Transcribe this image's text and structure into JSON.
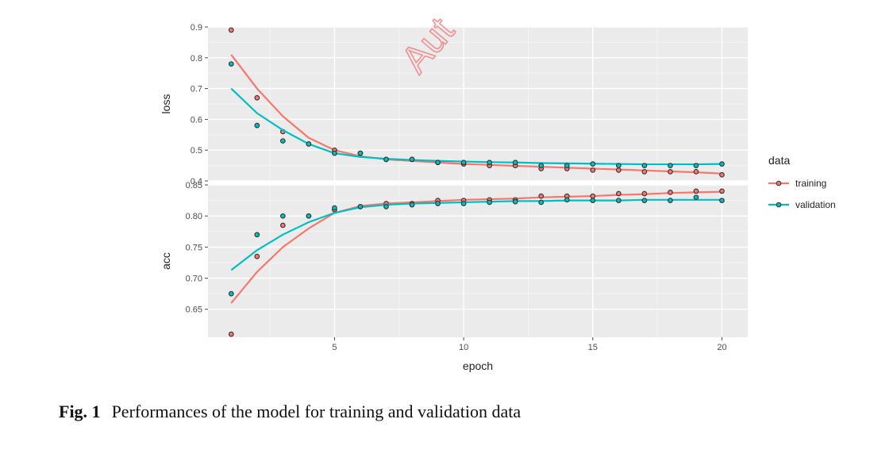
{
  "watermark": "Aut",
  "caption": {
    "label": "Fig. 1",
    "text": "Performances of the model for training and validation data"
  },
  "colors": {
    "training": "#f8766d",
    "validation": "#00bfc4",
    "panel_bg": "#ebebeb",
    "grid": "#ffffff"
  },
  "chart_data": {
    "type": "line",
    "xlabel": "epoch",
    "x_ticks": [
      5,
      10,
      15,
      20
    ],
    "xlim": [
      0.1,
      21
    ],
    "legend": {
      "title": "data",
      "entries": [
        "training",
        "validation"
      ],
      "placement": "right"
    },
    "facets": [
      {
        "ylabel": "loss",
        "ylim": [
          0.4,
          0.9
        ],
        "y_ticks": [
          "0.4",
          "0.5",
          "0.6",
          "0.7",
          "0.8",
          "0.9"
        ],
        "series": [
          {
            "name": "training",
            "points": [
              0.89,
              0.67,
              0.56,
              0.52,
              0.5,
              0.49,
              0.47,
              0.47,
              0.46,
              0.455,
              0.45,
              0.45,
              0.44,
              0.44,
              0.435,
              0.435,
              0.43,
              0.43,
              0.43,
              0.42
            ],
            "smooth": [
              0.81,
              0.7,
              0.61,
              0.54,
              0.5,
              0.48,
              0.47,
              0.465,
              0.46,
              0.455,
              0.452,
              0.449,
              0.446,
              0.443,
              0.44,
              0.437,
              0.434,
              0.431,
              0.428,
              0.424
            ]
          },
          {
            "name": "validation",
            "points": [
              0.78,
              0.58,
              0.53,
              0.52,
              0.49,
              0.49,
              0.47,
              0.47,
              0.46,
              0.46,
              0.46,
              0.46,
              0.45,
              0.45,
              0.455,
              0.45,
              0.45,
              0.45,
              0.45,
              0.455
            ],
            "smooth": [
              0.7,
              0.62,
              0.565,
              0.52,
              0.49,
              0.478,
              0.472,
              0.468,
              0.465,
              0.463,
              0.461,
              0.46,
              0.458,
              0.457,
              0.456,
              0.455,
              0.454,
              0.454,
              0.454,
              0.455
            ]
          }
        ]
      },
      {
        "ylabel": "acc",
        "ylim": [
          0.605,
          0.85
        ],
        "y_ticks": [
          "0.65",
          "0.70",
          "0.75",
          "0.80",
          "0.85"
        ],
        "series": [
          {
            "name": "training",
            "points": [
              0.61,
              0.735,
              0.785,
              0.8,
              0.81,
              0.815,
              0.82,
              0.82,
              0.825,
              0.825,
              0.826,
              0.826,
              0.832,
              0.832,
              0.832,
              0.836,
              0.836,
              0.838,
              0.84,
              0.84
            ],
            "smooth": [
              0.66,
              0.71,
              0.75,
              0.78,
              0.805,
              0.816,
              0.82,
              0.822,
              0.824,
              0.826,
              0.827,
              0.828,
              0.83,
              0.831,
              0.832,
              0.834,
              0.835,
              0.837,
              0.838,
              0.839
            ]
          },
          {
            "name": "validation",
            "points": [
              0.675,
              0.77,
              0.8,
              0.8,
              0.813,
              0.815,
              0.815,
              0.818,
              0.82,
              0.82,
              0.822,
              0.823,
              0.822,
              0.826,
              0.825,
              0.825,
              0.825,
              0.825,
              0.83,
              0.825
            ],
            "smooth": [
              0.713,
              0.745,
              0.77,
              0.79,
              0.805,
              0.814,
              0.818,
              0.82,
              0.821,
              0.822,
              0.823,
              0.824,
              0.824,
              0.825,
              0.825,
              0.825,
              0.826,
              0.826,
              0.826,
              0.826
            ]
          }
        ]
      }
    ]
  }
}
